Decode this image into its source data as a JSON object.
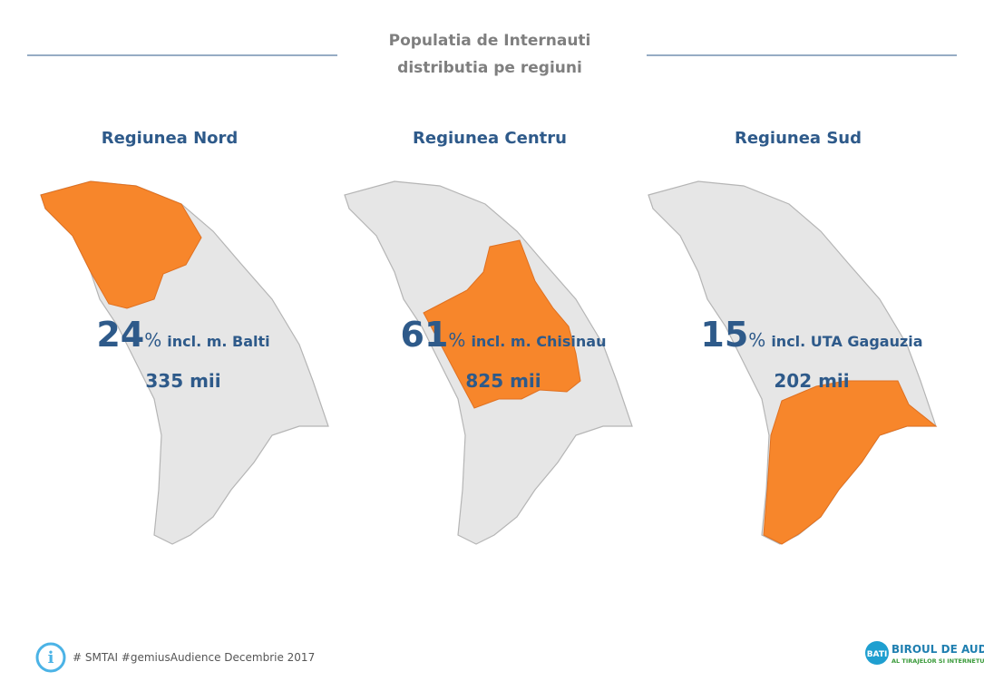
{
  "header": {
    "title_line1": "Populatia de Internauti",
    "title_line2": "distributia pe regiuni"
  },
  "regions": [
    {
      "name": "Regiunea Nord",
      "share": "24",
      "unit": "%",
      "note": "incl. m. Balti",
      "users": "335 mii"
    },
    {
      "name": "Regiunea Centru",
      "share": "61",
      "unit": "%",
      "note": "incl. m. Chisinau",
      "users": "825 mii"
    },
    {
      "name": "Regiunea Sud",
      "share": "15",
      "unit": "%",
      "note": "incl. UTA Gagauzia",
      "users": "202 mii"
    }
  ],
  "footer": {
    "source": "# SMTAI #gemiusAudience Decembrie 2017",
    "logo_badge": "BATI",
    "logo_title": "BIROUL DE AUDIT",
    "logo_subtitle": "AL TIRAJELOR SI INTERNETULUI"
  }
}
